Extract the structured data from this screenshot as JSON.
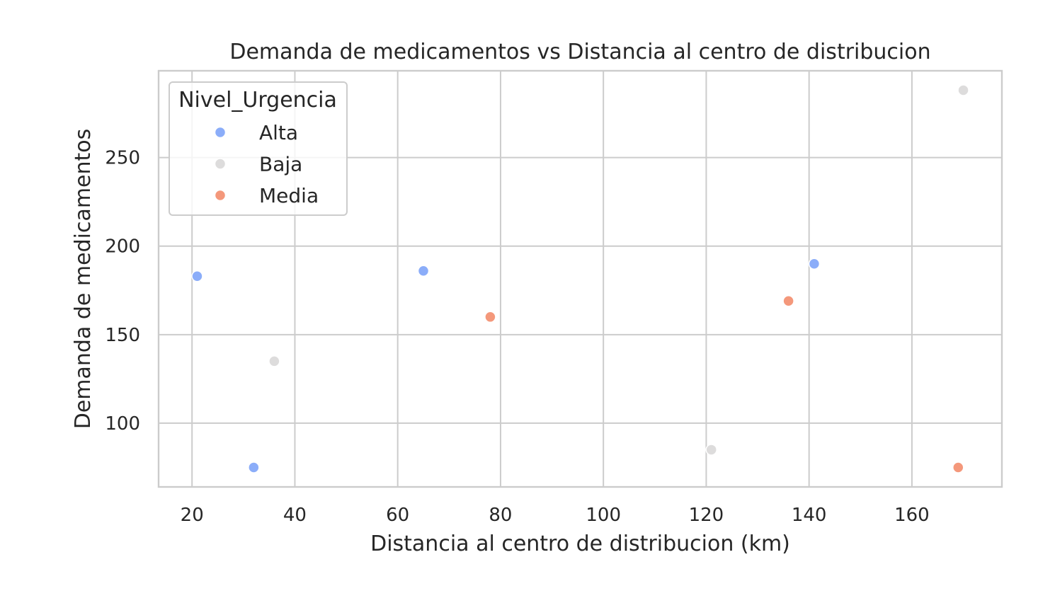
{
  "chart_data": {
    "type": "scatter",
    "title": "Demanda de medicamentos vs Distancia al centro de distribucion",
    "xlabel": "Distancia al centro de distribucion (km)",
    "ylabel": "Demanda de medicamentos",
    "xlim": [
      13.5,
      177.5
    ],
    "ylim": [
      64,
      299
    ],
    "xticks": [
      20,
      40,
      60,
      80,
      100,
      120,
      140,
      160
    ],
    "yticks": [
      100,
      150,
      200,
      250
    ],
    "grid": true,
    "legend": {
      "title": "Nivel_Urgencia",
      "placement": "top-left"
    },
    "series": [
      {
        "name": "Alta",
        "color": "#8badf9",
        "points": [
          {
            "x": 21,
            "y": 183
          },
          {
            "x": 32,
            "y": 75
          },
          {
            "x": 65,
            "y": 186
          },
          {
            "x": 141,
            "y": 190
          }
        ]
      },
      {
        "name": "Baja",
        "color": "#dddcdc",
        "points": [
          {
            "x": 36,
            "y": 135
          },
          {
            "x": 121,
            "y": 85
          },
          {
            "x": 170,
            "y": 288
          }
        ]
      },
      {
        "name": "Media",
        "color": "#f4987b",
        "points": [
          {
            "x": 78,
            "y": 160
          },
          {
            "x": 136,
            "y": 169
          },
          {
            "x": 169,
            "y": 75
          }
        ]
      }
    ]
  }
}
